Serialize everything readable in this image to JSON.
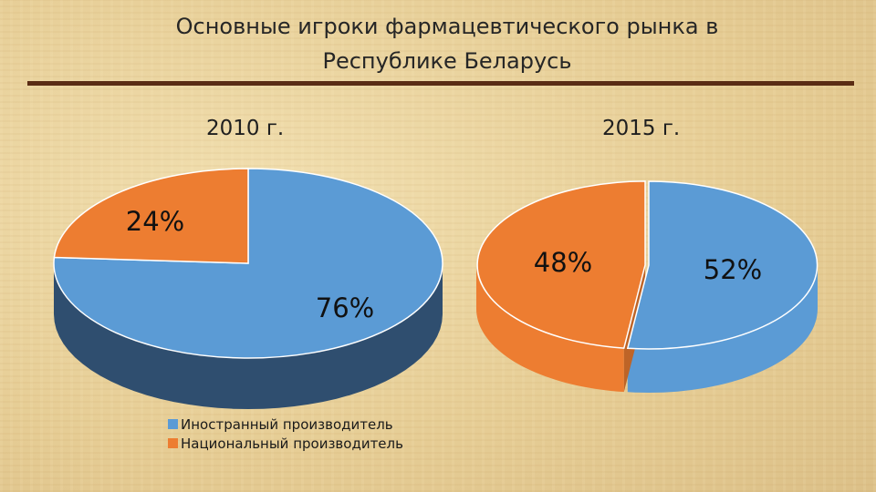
{
  "title_line1": "Основные игроки фармацевтического рынка в",
  "title_line2": "Республике Беларусь",
  "chart_data": [
    {
      "type": "pie",
      "title": "2010 г.",
      "categories": [
        "Иностранный производитель",
        "Национальный производитель"
      ],
      "values": [
        76,
        24
      ],
      "labels": [
        "76%",
        "24%"
      ],
      "colors": [
        "#5b9bd5",
        "#ed7d31"
      ],
      "legend": "bottom"
    },
    {
      "type": "pie",
      "title": "2015 г.",
      "categories": [
        "Иностранный производитель",
        "Национальный производитель"
      ],
      "values": [
        52,
        48
      ],
      "labels": [
        "52%",
        "48%"
      ],
      "colors": [
        "#5b9bd5",
        "#ed7d31"
      ],
      "legend": "bottom"
    }
  ],
  "legend": [
    {
      "label": "Иностранный производитель",
      "color": "#5b9bd5"
    },
    {
      "label": "Национальный производитель",
      "color": "#ed7d31"
    }
  ]
}
